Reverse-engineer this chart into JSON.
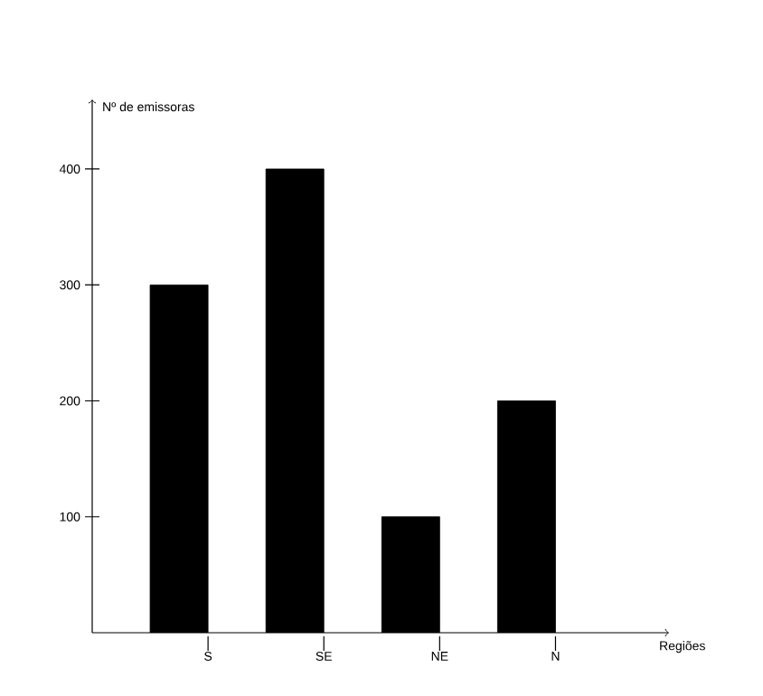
{
  "chart_data": {
    "type": "bar",
    "xlabel": "Regiões",
    "ylabel": "Nº de emissoras",
    "categories": [
      "S",
      "SE",
      "NE",
      "N"
    ],
    "values": [
      300,
      400,
      100,
      200
    ],
    "color": "#000000",
    "ylim": [
      0,
      460
    ],
    "yticks": [
      100,
      200,
      300,
      400
    ],
    "grid": false
  }
}
